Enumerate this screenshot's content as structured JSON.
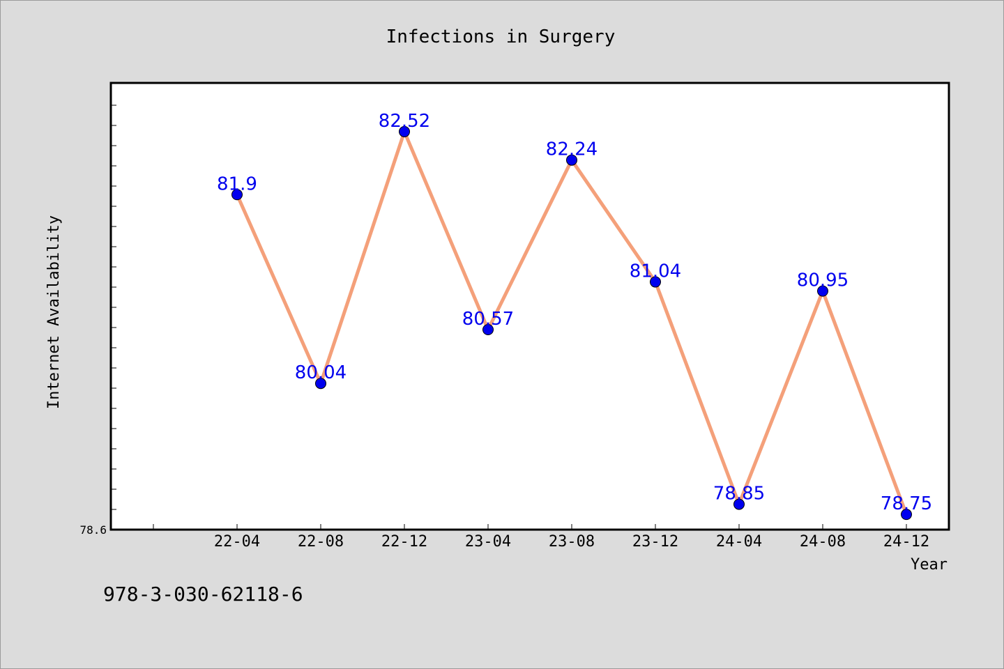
{
  "chart_data": {
    "type": "line",
    "title": "Infections in Surgery",
    "xlabel": "Year",
    "ylabel": "Internet Availability",
    "categories": [
      "22-04",
      "22-08",
      "22-12",
      "23-04",
      "23-08",
      "23-12",
      "24-04",
      "24-08",
      "24-12"
    ],
    "series": [
      {
        "values": [
          81.9,
          80.04,
          82.52,
          80.57,
          82.24,
          81.04,
          78.85,
          80.95,
          78.75
        ],
        "line_color": "#f4a07a",
        "marker_color": "#0000ee"
      }
    ],
    "data_labels": [
      "81.9",
      "80.04",
      "82.52",
      "80.57",
      "82.24",
      "81.04",
      "78.85",
      "80.95",
      "78.75"
    ],
    "ylim": [
      78.6,
      83.0
    ],
    "y_tick_labels": [
      "78.6"
    ],
    "grid": false,
    "label_color": "#0000ee"
  },
  "footer": {
    "isbn": "978-3-030-62118-6"
  }
}
